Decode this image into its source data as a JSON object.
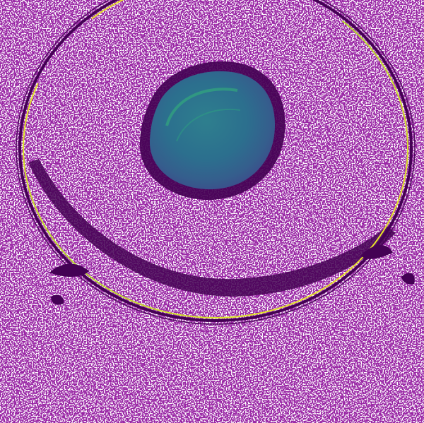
{
  "image": {
    "kind": "false-color intensity image",
    "colormap": "viridis",
    "background_color": "#ffffff",
    "low_value_color": "#440154",
    "mid_value_color": "#21918c",
    "high_value_color": "#fde725"
  },
  "features": [
    {
      "name": "central-blob",
      "description_color": "#2a8a8c"
    },
    {
      "name": "outer-ring",
      "description_color": "#440154"
    },
    {
      "name": "inner-dark-band",
      "description_color": "#440154"
    },
    {
      "name": "speckle-noise",
      "description_color": "#440154"
    }
  ]
}
